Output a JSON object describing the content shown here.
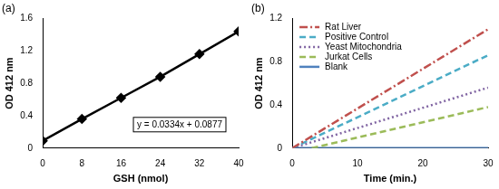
{
  "chart_data": [
    {
      "type": "scatter",
      "title": "(a)",
      "x_label": "GSH (nmol)",
      "y_label": "OD 412 nm",
      "x": [
        0,
        8,
        16,
        24,
        32,
        40
      ],
      "series": [
        {
          "color": "#000000",
          "marker": "diamond",
          "line_style": "solid",
          "values": [
            0.09,
            0.36,
            0.62,
            0.88,
            1.16,
            1.44
          ]
        }
      ],
      "annotations": [
        "y = 0.0334x + 0.0877"
      ],
      "xlim": [
        0,
        40
      ],
      "xticks": [
        0,
        8,
        16,
        24,
        32,
        40
      ],
      "ylim": [
        0,
        1.6
      ],
      "yticks": [
        0,
        0.4,
        0.8,
        1.2,
        1.6
      ],
      "grid": false
    },
    {
      "type": "line",
      "title": "(b)",
      "x_label": "Time (min.)",
      "y_label": "OD 412 nm",
      "x": [
        0,
        3,
        30
      ],
      "series": [
        {
          "name": "Rat Liver",
          "color": "#c0504d",
          "line_style": "dashdot",
          "values": [
            0,
            0.11,
            1.1
          ]
        },
        {
          "name": "Positive Control",
          "color": "#4bacc6",
          "line_style": "dashed",
          "values": [
            0,
            0.085,
            0.86
          ]
        },
        {
          "name": "Yeast Mitochondria",
          "color": "#8064a2",
          "line_style": "dotted",
          "values": [
            0,
            0.055,
            0.56
          ]
        },
        {
          "name": "Jurkat Cells",
          "color": "#9bbb59",
          "line_style": "dashed",
          "values": [
            null,
            0,
            0.38
          ]
        },
        {
          "name": "Blank",
          "color": "#4f81bd",
          "line_style": "solid",
          "values": [
            0,
            0,
            0
          ]
        }
      ],
      "legend": "upper left",
      "xlim": [
        0,
        30
      ],
      "xticks": [
        0,
        10,
        20,
        30
      ],
      "ylim": [
        0,
        1.2
      ],
      "yticks": [
        0,
        0.4,
        0.8,
        1.2
      ],
      "grid": false
    }
  ]
}
